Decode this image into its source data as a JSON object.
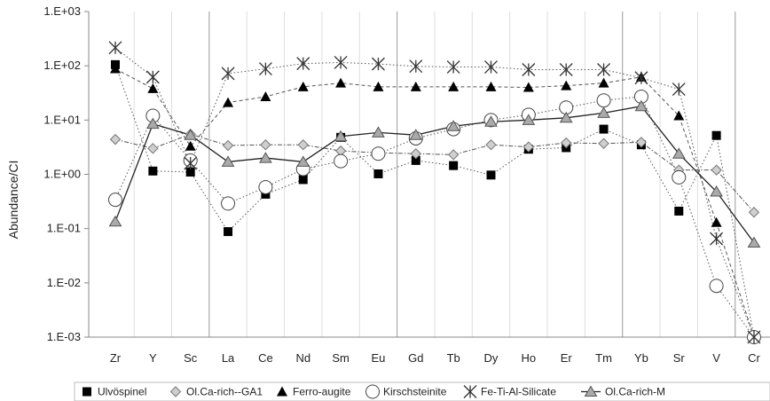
{
  "chart_data": {
    "type": "line",
    "ylabel": "Abundance/CI",
    "y_scale": "log",
    "ylim": [
      0.001,
      1000
    ],
    "y_ticks": [
      "1.E-03",
      "1.E-02",
      "1.E-01",
      "1.E+00",
      "1.E+01",
      "1.E+02",
      "1.E+03"
    ],
    "categories": [
      "Zr",
      "Y",
      "Sc",
      "La",
      "Ce",
      "Nd",
      "Sm",
      "Eu",
      "Gd",
      "Tb",
      "Dy",
      "Ho",
      "Er",
      "Tm",
      "Yb",
      "Sr",
      "V",
      "Cr"
    ],
    "legend_position": "bottom",
    "series": [
      {
        "name": "Ulvöspinel",
        "marker": "square-filled",
        "line": "dotted",
        "values": [
          105,
          1.15,
          1.1,
          0.088,
          0.43,
          0.8,
          4.8,
          1.02,
          1.8,
          1.45,
          0.97,
          2.9,
          3.1,
          6.8,
          3.5,
          0.21,
          5.2,
          0.001
        ]
      },
      {
        "name": "Ol.Ca-rich--GA1",
        "marker": "diamond-open",
        "line": "dash-dot",
        "values": [
          4.4,
          3.0,
          5.5,
          3.4,
          3.5,
          3.5,
          2.7,
          2.5,
          2.4,
          2.3,
          3.5,
          3.2,
          3.8,
          3.7,
          3.9,
          1.2,
          1.2,
          0.2
        ]
      },
      {
        "name": "Ferro-augite",
        "marker": "triangle-filled",
        "line": "dashed",
        "values": [
          88,
          38,
          3.3,
          21,
          27,
          41,
          48,
          41,
          41,
          41,
          41,
          40,
          43,
          48,
          62,
          12,
          0.13,
          0.001
        ]
      },
      {
        "name": "Kirschsteinite",
        "marker": "circle-open",
        "line": "dotted",
        "values": [
          0.34,
          12,
          1.8,
          0.29,
          0.58,
          1.25,
          1.75,
          2.4,
          4.6,
          6.8,
          10,
          12.5,
          17,
          23,
          27,
          0.88,
          0.0088,
          0.001
        ]
      },
      {
        "name": "Fe-Ti-Al-Silicate",
        "marker": "asterisk",
        "line": "dotted",
        "values": [
          215,
          62,
          1.6,
          72,
          88,
          110,
          115,
          108,
          98,
          95,
          95,
          85,
          85,
          85,
          60,
          37,
          0.065,
          0.001
        ]
      },
      {
        "name": "Ol.Ca-rich-M",
        "marker": "triangle-gray",
        "line": "solid",
        "values": [
          0.135,
          8.5,
          5.3,
          1.7,
          2.0,
          1.7,
          5.0,
          5.9,
          5.3,
          7.7,
          9.3,
          10,
          11,
          13.5,
          18,
          2.4,
          0.48,
          0.055
        ]
      }
    ],
    "grid": "vertical-lines-only",
    "colors": {
      "axis": "#888888",
      "grid_light": "#dddddd",
      "grid_dark": "#999999",
      "marker": "#000000",
      "gray_fill": "#aaaaaa"
    }
  }
}
